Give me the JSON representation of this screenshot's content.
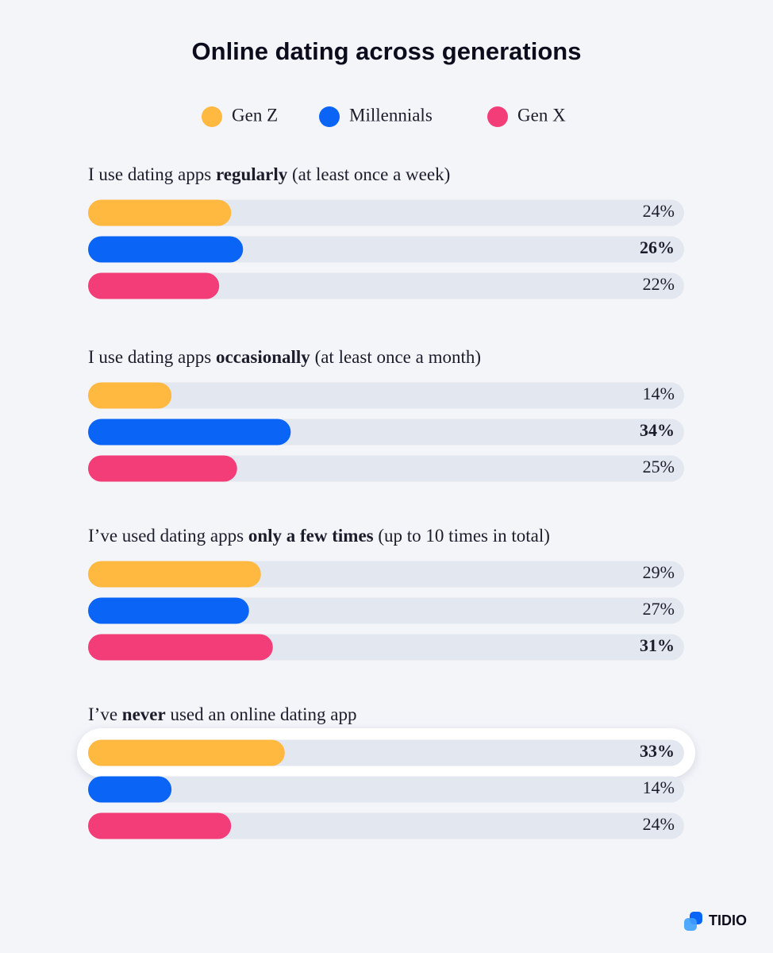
{
  "chart_data": {
    "type": "bar",
    "title": "Online dating across generations",
    "categories": [
      {
        "before": "I use dating apps ",
        "bold": "regularly",
        "after": " (at least once a week)"
      },
      {
        "before": "I use dating apps ",
        "bold": "occasionally",
        "after": " (at least once a month)"
      },
      {
        "before": "I’ve used dating apps ",
        "bold": "only a few times",
        "after": " (up to 10 times in total)"
      },
      {
        "before": "I’ve ",
        "bold": "never",
        "after": " used an online dating app"
      }
    ],
    "series": [
      {
        "name": "Gen Z",
        "color": "#ffb840",
        "values": [
          24,
          14,
          29,
          33
        ],
        "value_labels": [
          "24%",
          "14%",
          "29%",
          "33%"
        ]
      },
      {
        "name": "Millennials",
        "color": "#0a64f5",
        "values": [
          26,
          34,
          27,
          14
        ],
        "value_labels": [
          "26%",
          "34%",
          "27%",
          "14%"
        ]
      },
      {
        "name": "Gen X",
        "color": "#f23d78",
        "values": [
          22,
          25,
          31,
          24
        ],
        "value_labels": [
          "22%",
          "25%",
          "31%",
          "24%"
        ]
      }
    ],
    "xlim": [
      0,
      100
    ],
    "track_color": "#e3e7ef",
    "brand": "TIDIO"
  }
}
